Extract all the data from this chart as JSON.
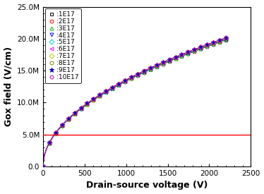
{
  "title": "",
  "xlabel": "Drain-source voltage (V)",
  "ylabel": "Gox field (V/cm)",
  "xlim": [
    0,
    2500
  ],
  "ylim": [
    0,
    25000000.0
  ],
  "hline_y": 5000000.0,
  "hline_color": "red",
  "series": [
    {
      "label": ":1E17",
      "color": "#000000",
      "marker": "s",
      "markersize": 3.5,
      "mfc": "none"
    },
    {
      "label": ":2E17",
      "color": "#ff0000",
      "marker": "o",
      "markersize": 3.5,
      "mfc": "none"
    },
    {
      "label": ":3E17",
      "color": "#00bb00",
      "marker": "^",
      "markersize": 3.5,
      "mfc": "none"
    },
    {
      "label": ":4E17",
      "color": "#0000ff",
      "marker": "v",
      "markersize": 3.5,
      "mfc": "none"
    },
    {
      "label": ":5E17",
      "color": "#00cccc",
      "marker": "D",
      "markersize": 3.5,
      "mfc": "none"
    },
    {
      "label": ":6E17",
      "color": "#ff00ff",
      "marker": "<",
      "markersize": 3.5,
      "mfc": "none"
    },
    {
      "label": ":7E17",
      "color": "#cccc00",
      "marker": "D",
      "markersize": 3.5,
      "mfc": "none"
    },
    {
      "label": ":8E17",
      "color": "#808000",
      "marker": "o",
      "markersize": 3.5,
      "mfc": "none"
    },
    {
      "label": ":9E17",
      "color": "#000099",
      "marker": "*",
      "markersize": 5.0,
      "mfc": "#0000ff"
    },
    {
      "label": ":10E17",
      "color": "#cc00cc",
      "marker": "o",
      "markersize": 3.5,
      "mfc": "none"
    }
  ],
  "yticks": [
    0.0,
    5000000.0,
    10000000.0,
    15000000.0,
    20000000.0,
    25000000.0
  ],
  "ytick_labels": [
    "0.0",
    "5.0M",
    "10.0M",
    "15.0M",
    "20.0M",
    "25.0M"
  ],
  "xticks": [
    0,
    500,
    1000,
    1500,
    2000,
    2500
  ],
  "background_color": "#ffffff",
  "legend_fontsize": 6.5,
  "axis_label_fontsize": 9,
  "tick_fontsize": 7.5,
  "curve_amplitude": 426000.0,
  "curve_power": 0.5,
  "n_line_points": 200,
  "n_marker_points": 30,
  "vds_max": 2200
}
